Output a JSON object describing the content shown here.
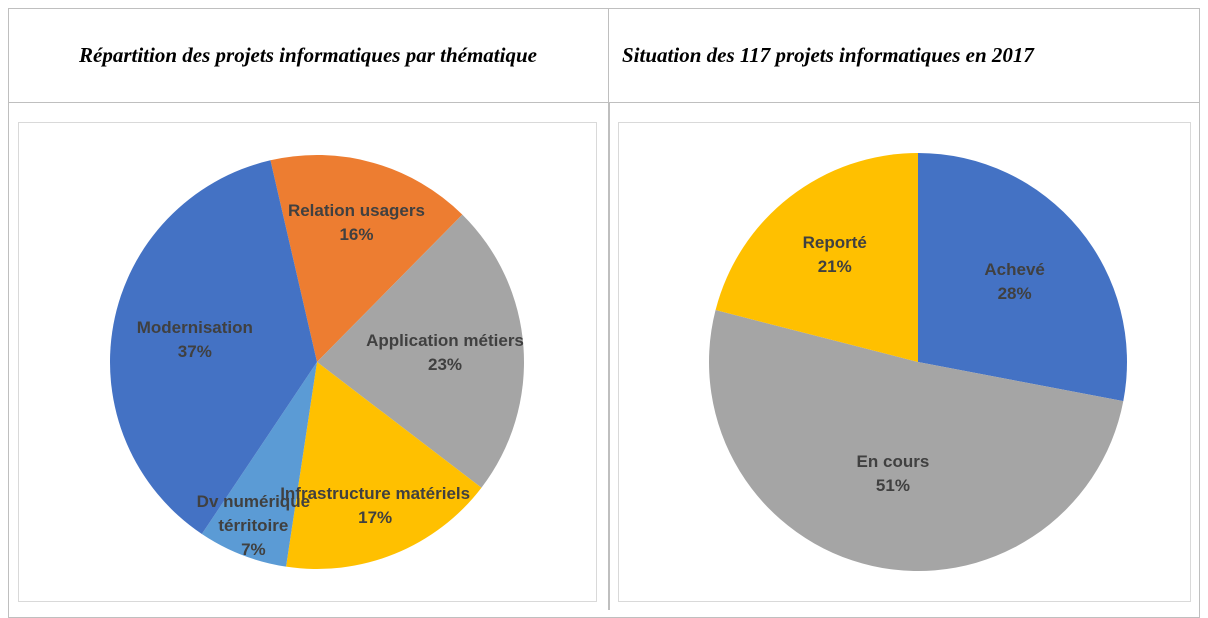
{
  "chart_data": [
    {
      "type": "pie",
      "title": "Répartition des projets informatiques par thématique",
      "categories": [
        "Relation usagers",
        "Application métiers",
        "Infrastructure matériels",
        "Dv numérique térritoire",
        "Modernisation"
      ],
      "values": [
        16,
        23,
        17,
        7,
        37
      ],
      "value_labels": [
        "16%",
        "23%",
        "17%",
        "7%",
        "37%"
      ],
      "colors": [
        "#ed7d31",
        "#a5a5a5",
        "#ffc000",
        "#5b9bd5",
        "#4472c4"
      ]
    },
    {
      "type": "pie",
      "title": "Situation des 117 projets informatiques en 2017",
      "categories": [
        "Achevé",
        "En cours",
        "Reporté"
      ],
      "values": [
        28,
        51,
        21
      ],
      "value_labels": [
        "28%",
        "51%",
        "21%"
      ],
      "colors": [
        "#4472c4",
        "#a5a5a5",
        "#ffc000"
      ]
    }
  ]
}
